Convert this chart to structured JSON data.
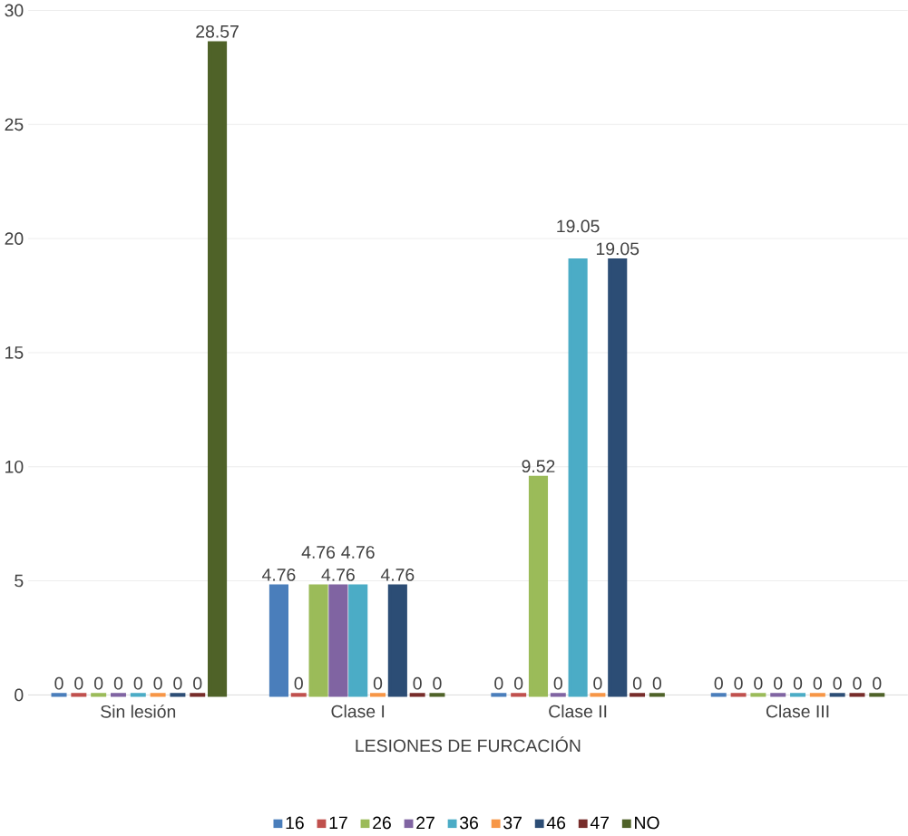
{
  "chart_data": {
    "type": "bar",
    "xlabel": "LESIONES DE FURCACIÓN",
    "categories": [
      "Sin lesión",
      "Clase I",
      "Clase II",
      "Clase III"
    ],
    "series": [
      {
        "name": "16",
        "color": "#4a7ebb",
        "values": [
          0,
          4.76,
          0,
          0
        ]
      },
      {
        "name": "17",
        "color": "#c0504d",
        "values": [
          0,
          0,
          0,
          0
        ]
      },
      {
        "name": "26",
        "color": "#9bbb59",
        "values": [
          0,
          4.76,
          9.52,
          0
        ]
      },
      {
        "name": "27",
        "color": "#8064a2",
        "values": [
          0,
          4.76,
          0,
          0
        ]
      },
      {
        "name": "36",
        "color": "#4bacc6",
        "values": [
          0,
          4.76,
          19.05,
          0
        ]
      },
      {
        "name": "37",
        "color": "#f79646",
        "values": [
          0,
          0,
          0,
          0
        ]
      },
      {
        "name": "46",
        "color": "#2c4d75",
        "values": [
          0,
          4.76,
          19.05,
          0
        ]
      },
      {
        "name": "47",
        "color": "#772c2a",
        "values": [
          0,
          0,
          0,
          0
        ]
      },
      {
        "name": "NO",
        "color": "#4f6228",
        "values": [
          28.57,
          0,
          0,
          0
        ]
      }
    ],
    "ylim": [
      0,
      30
    ],
    "yticks": [
      0,
      5,
      10,
      15,
      20,
      25,
      30
    ],
    "grid": "y",
    "legend": "bottom",
    "data_labels": true
  }
}
